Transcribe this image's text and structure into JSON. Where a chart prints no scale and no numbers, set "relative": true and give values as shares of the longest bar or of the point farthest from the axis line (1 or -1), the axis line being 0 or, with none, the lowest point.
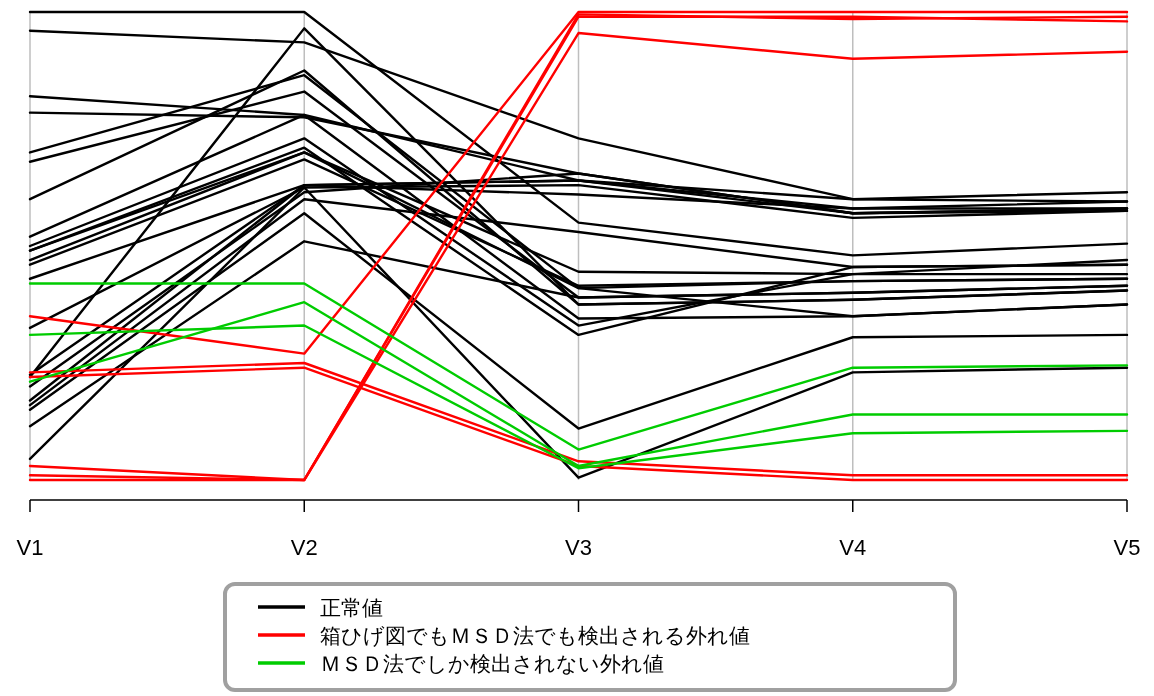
{
  "chart_data": {
    "type": "line",
    "relative": true,
    "categories": [
      "V1",
      "V2",
      "V3",
      "V4",
      "V5"
    ],
    "grid": "x",
    "legend": "bottom",
    "tick_labels": "x",
    "series": [
      {
        "name": "正常値",
        "color": "#000000",
        "values": [
          1.0,
          1.0,
          0.55,
          0.48,
          0.505
        ]
      },
      {
        "color": "#000000",
        "values": [
          0.96,
          0.935,
          0.73,
          0.6,
          0.615
        ]
      },
      {
        "color": "#000000",
        "values": [
          0.82,
          0.78,
          0.64,
          0.58,
          0.595
        ]
      },
      {
        "color": "#000000",
        "values": [
          0.785,
          0.775,
          0.655,
          0.57,
          0.58
        ]
      },
      {
        "color": "#000000",
        "values": [
          0.7,
          0.865,
          0.41,
          0.425,
          0.43
        ]
      },
      {
        "color": "#000000",
        "values": [
          0.68,
          0.83,
          0.39,
          0.4,
          0.415
        ]
      },
      {
        "color": "#000000",
        "values": [
          0.6,
          0.875,
          0.375,
          0.385,
          0.405
        ]
      },
      {
        "color": "#000000",
        "values": [
          0.52,
          0.78,
          0.345,
          0.35,
          0.375
        ]
      },
      {
        "color": "#000000",
        "values": [
          0.5,
          0.73,
          0.33,
          0.44,
          0.44
        ]
      },
      {
        "color": "#000000",
        "values": [
          0.49,
          0.71,
          0.31,
          0.455,
          0.46
        ]
      },
      {
        "color": "#000000",
        "values": [
          0.47,
          0.7,
          0.445,
          0.44,
          0.47
        ]
      },
      {
        "color": "#000000",
        "values": [
          0.46,
          0.685,
          0.415,
          0.425,
          0.43
        ]
      },
      {
        "color": "#000000",
        "values": [
          0.43,
          0.63,
          0.64,
          0.57,
          0.58
        ]
      },
      {
        "color": "#000000",
        "values": [
          0.325,
          0.625,
          0.63,
          0.56,
          0.575
        ]
      },
      {
        "color": "#000000",
        "values": [
          0.225,
          0.63,
          0.61,
          0.58,
          0.58
        ]
      },
      {
        "color": "#000000",
        "values": [
          0.2,
          0.615,
          0.655,
          0.57,
          0.575
        ]
      },
      {
        "color": "#000000",
        "values": [
          0.16,
          0.6,
          0.53,
          0.455,
          0.46
        ]
      },
      {
        "color": "#000000",
        "values": [
          0.15,
          0.57,
          0.11,
          0.305,
          0.31
        ]
      },
      {
        "color": "#000000",
        "values": [
          0.115,
          0.51,
          0.39,
          0.4,
          0.415
        ]
      },
      {
        "color": "#000000",
        "values": [
          0.045,
          0.625,
          0.005,
          0.23,
          0.24
        ]
      },
      {
        "color": "#000000",
        "values": [
          0.22,
          0.965,
          0.375,
          0.385,
          0.405
        ]
      },
      {
        "color": "#000000",
        "values": [
          0.49,
          0.7,
          0.41,
          0.35,
          0.375
        ]
      },
      {
        "color": "#000000",
        "values": [
          0.17,
          0.63,
          0.64,
          0.6,
          0.595
        ]
      },
      {
        "name": "箱ひげ図でもＭＳＤ法でも検出される外れ値",
        "color": "#ff0000",
        "values": [
          0.35,
          0.27,
          1.0,
          1.0,
          1.0
        ]
      },
      {
        "color": "#ff0000",
        "values": [
          0.03,
          0.0,
          0.955,
          0.9,
          0.915
        ]
      },
      {
        "color": "#ff0000",
        "values": [
          0.23,
          0.25,
          0.04,
          0.01,
          0.01
        ]
      },
      {
        "color": "#ff0000",
        "values": [
          0.22,
          0.24,
          0.03,
          0.0,
          0.0
        ]
      },
      {
        "color": "#ff0000",
        "values": [
          0.01,
          0.0,
          0.99,
          0.99,
          0.98
        ]
      },
      {
        "color": "#ff0000",
        "values": [
          0.0,
          0.0,
          0.995,
          0.985,
          0.99
        ]
      },
      {
        "name": "ＭＳＤ法でしか検出されない外れ値",
        "color": "#00cc00",
        "values": [
          0.42,
          0.42,
          0.065,
          0.24,
          0.245
        ]
      },
      {
        "color": "#00cc00",
        "values": [
          0.21,
          0.38,
          0.03,
          0.14,
          0.14
        ]
      },
      {
        "color": "#00cc00",
        "values": [
          0.31,
          0.33,
          0.025,
          0.1,
          0.105
        ]
      }
    ]
  }
}
